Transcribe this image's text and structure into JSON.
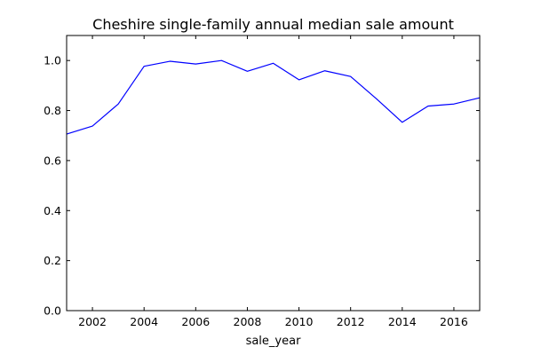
{
  "chart_data": {
    "type": "line",
    "title": "Cheshire single-family annual median sale amount",
    "xlabel": "sale_year",
    "ylabel": "",
    "xlim": [
      2001,
      2017
    ],
    "ylim": [
      0.0,
      1.1
    ],
    "grid": false,
    "legend": "none",
    "x_ticks": [
      2002,
      2004,
      2006,
      2008,
      2010,
      2012,
      2014,
      2016
    ],
    "y_ticks": [
      0.0,
      0.2,
      0.4,
      0.6,
      0.8,
      1.0
    ],
    "x_tick_labels": [
      "2002",
      "2004",
      "2006",
      "2008",
      "2010",
      "2012",
      "2014",
      "2016"
    ],
    "y_tick_labels": [
      "0.0",
      "0.2",
      "0.4",
      "0.6",
      "0.8",
      "1.0"
    ],
    "series": [
      {
        "color": "#0000ff",
        "x": [
          2001,
          2002,
          2003,
          2004,
          2005,
          2006,
          2007,
          2008,
          2009,
          2010,
          2011,
          2012,
          2013,
          2014,
          2015,
          2016,
          2017
        ],
        "values": [
          0.706,
          0.738,
          0.826,
          0.977,
          0.997,
          0.986,
          1.0,
          0.957,
          0.989,
          0.923,
          0.959,
          0.936,
          0.847,
          0.753,
          0.818,
          0.826,
          0.851
        ]
      }
    ]
  }
}
